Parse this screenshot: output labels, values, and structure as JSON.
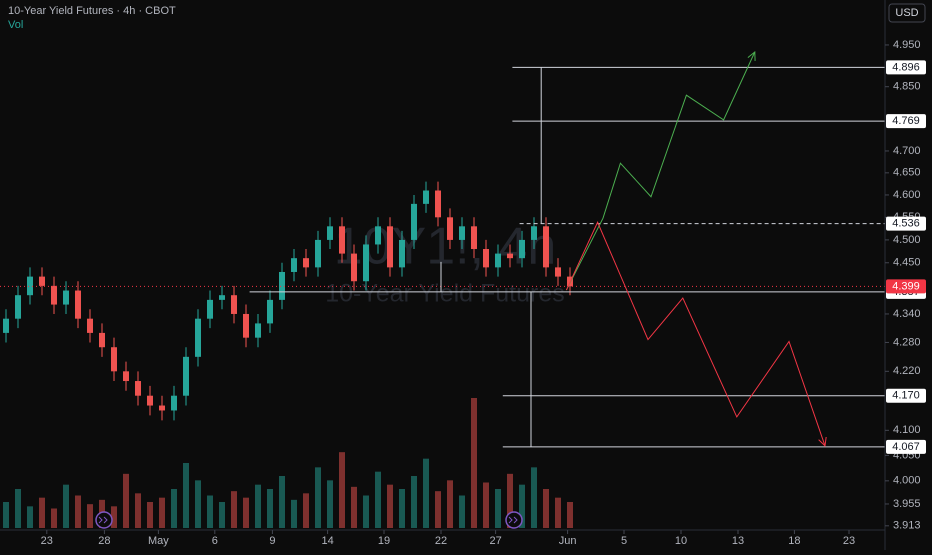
{
  "chart_data": {
    "type": "candlestick",
    "title": "10-Year Yield Futures · 4h · CBOT",
    "volume_label": "Vol",
    "watermark": "10Y1!, 4h",
    "watermark_subtitle": "10-Year Yield Futures",
    "currency": "USD",
    "log": true,
    "ylim": [
      3.905,
      5.06
    ],
    "yticks": [
      {
        "value": 4.95,
        "label": "4.950"
      },
      {
        "value": 4.85,
        "label": "4.850"
      },
      {
        "value": 4.7,
        "label": "4.700"
      },
      {
        "value": 4.65,
        "label": "4.650"
      },
      {
        "value": 4.6,
        "label": "4.600"
      },
      {
        "value": 4.55,
        "label": "4.550"
      },
      {
        "value": 4.5,
        "label": "4.500"
      },
      {
        "value": 4.45,
        "label": "4.450"
      },
      {
        "value": 4.34,
        "label": "4.340"
      },
      {
        "value": 4.28,
        "label": "4.280"
      },
      {
        "value": 4.22,
        "label": "4.220"
      },
      {
        "value": 4.1,
        "label": "4.100"
      },
      {
        "value": 4.05,
        "label": "4.050"
      },
      {
        "value": 4.0,
        "label": "4.000"
      },
      {
        "value": 3.955,
        "label": "3.955"
      },
      {
        "value": 3.913,
        "label": "3.913"
      }
    ],
    "xlim": [
      0,
      73.75
    ],
    "xticks": [
      {
        "value": 3.9,
        "label": "23"
      },
      {
        "value": 8.7,
        "label": "28"
      },
      {
        "value": 13.2,
        "label": "May"
      },
      {
        "value": 17.9,
        "label": "6"
      },
      {
        "value": 22.7,
        "label": "9"
      },
      {
        "value": 27.3,
        "label": "14"
      },
      {
        "value": 32,
        "label": "19"
      },
      {
        "value": 36.75,
        "label": "22"
      },
      {
        "value": 41.3,
        "label": "27"
      },
      {
        "value": 47.3,
        "label": "Jun"
      },
      {
        "value": 52,
        "label": "5"
      },
      {
        "value": 56.75,
        "label": "10"
      },
      {
        "value": 61.5,
        "label": "13"
      },
      {
        "value": 66.2,
        "label": "18"
      },
      {
        "value": 70.75,
        "label": "23"
      }
    ],
    "open": [
      4.3,
      4.33,
      4.38,
      4.42,
      4.4,
      4.36,
      4.39,
      4.33,
      4.3,
      4.27,
      4.22,
      4.2,
      4.17,
      4.15,
      4.14,
      4.17,
      4.25,
      4.33,
      4.37,
      4.38,
      4.34,
      4.29,
      4.32,
      4.37,
      4.43,
      4.46,
      4.44,
      4.5,
      4.53,
      4.47,
      4.41,
      4.49,
      4.53,
      4.44,
      4.5,
      4.58,
      4.61,
      4.55,
      4.5,
      4.53,
      4.48,
      4.44,
      4.47,
      4.46,
      4.5,
      4.53,
      4.44,
      4.42
    ],
    "high": [
      4.35,
      4.4,
      4.44,
      4.44,
      4.42,
      4.41,
      4.41,
      4.35,
      4.32,
      4.29,
      4.24,
      4.22,
      4.19,
      4.17,
      4.19,
      4.27,
      4.35,
      4.39,
      4.4,
      4.4,
      4.36,
      4.34,
      4.39,
      4.45,
      4.48,
      4.48,
      4.52,
      4.55,
      4.55,
      4.49,
      4.51,
      4.55,
      4.55,
      4.52,
      4.6,
      4.63,
      4.63,
      4.57,
      4.55,
      4.55,
      4.5,
      4.49,
      4.49,
      4.52,
      4.55,
      4.55,
      4.46,
      4.44
    ],
    "low": [
      4.28,
      4.31,
      4.36,
      4.38,
      4.34,
      4.34,
      4.31,
      4.28,
      4.25,
      4.2,
      4.18,
      4.15,
      4.13,
      4.12,
      4.12,
      4.15,
      4.23,
      4.31,
      4.35,
      4.32,
      4.27,
      4.27,
      4.3,
      4.35,
      4.41,
      4.42,
      4.42,
      4.48,
      4.45,
      4.39,
      4.39,
      4.47,
      4.42,
      4.42,
      4.48,
      4.56,
      4.53,
      4.48,
      4.48,
      4.46,
      4.42,
      4.42,
      4.44,
      4.44,
      4.48,
      4.42,
      4.4,
      4.38
    ],
    "close": [
      4.33,
      4.38,
      4.42,
      4.4,
      4.36,
      4.39,
      4.33,
      4.3,
      4.27,
      4.22,
      4.2,
      4.17,
      4.15,
      4.14,
      4.17,
      4.25,
      4.33,
      4.37,
      4.38,
      4.34,
      4.29,
      4.32,
      4.37,
      4.43,
      4.46,
      4.44,
      4.5,
      4.53,
      4.47,
      4.41,
      4.49,
      4.53,
      4.44,
      4.5,
      4.58,
      4.61,
      4.55,
      4.5,
      4.53,
      4.48,
      4.44,
      4.47,
      4.46,
      4.5,
      4.53,
      4.44,
      4.42,
      4.399
    ],
    "volume": [
      12,
      18,
      10,
      14,
      9,
      20,
      15,
      11,
      13,
      10,
      25,
      16,
      12,
      14,
      18,
      30,
      22,
      15,
      12,
      17,
      14,
      20,
      18,
      24,
      13,
      16,
      28,
      22,
      35,
      19,
      15,
      26,
      20,
      18,
      24,
      32,
      17,
      22,
      15,
      60,
      21,
      18,
      25,
      20,
      28,
      18,
      14,
      12
    ],
    "up_color": "#26a69a",
    "down_color": "#ef5350",
    "current_price": {
      "value": 4.399,
      "color": "#f23645"
    },
    "levels": [
      {
        "value": 4.896,
        "start": 42.7
      },
      {
        "value": 4.769,
        "start": 42.7
      },
      {
        "value": 4.536,
        "start": 43.3,
        "dashed": true
      },
      {
        "value": 4.387,
        "start": 20.8
      },
      {
        "value": 4.17,
        "label": "4.170",
        "start": 41.9
      },
      {
        "value": 4.067,
        "start": 41.9
      }
    ],
    "measure_lines": [
      {
        "x": 45.1,
        "from": 4.536,
        "to": 4.896
      },
      {
        "x": 36.75,
        "from": 4.387,
        "to": 4.452
      },
      {
        "x": 44.25,
        "from": 4.067,
        "to": 4.387
      }
    ],
    "projections": [
      {
        "color": "#4caf50",
        "x": [
          47.2,
          50.25,
          51.7,
          54.25,
          57.2,
          60.3,
          62.9
        ],
        "values": [
          4.391,
          4.548,
          4.672,
          4.596,
          4.83,
          4.772,
          4.933
        ]
      },
      {
        "color": "#f23645",
        "x": [
          47.2,
          49.8,
          54,
          56.9,
          61.4,
          65.75,
          68.75
        ],
        "values": [
          4.391,
          4.539,
          4.286,
          4.374,
          4.127,
          4.282,
          4.069
        ]
      }
    ]
  }
}
